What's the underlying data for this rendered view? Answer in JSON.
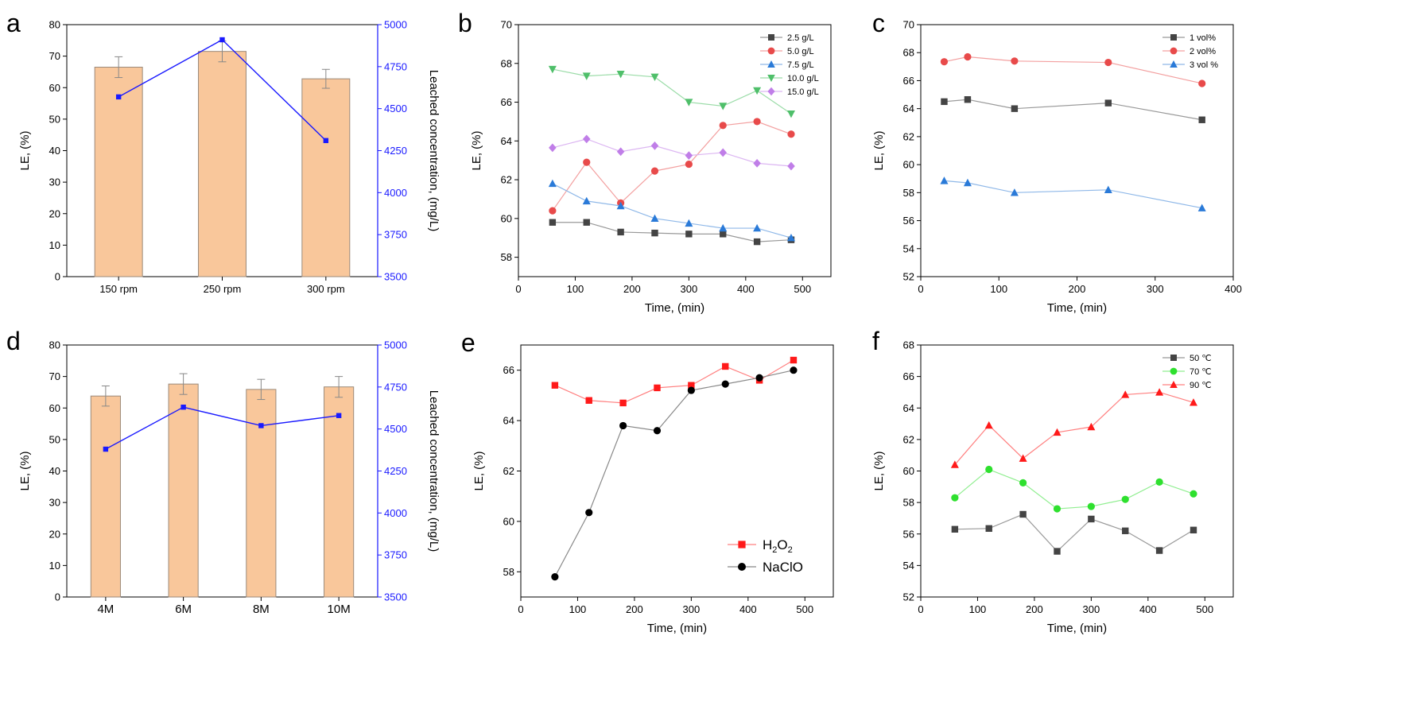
{
  "chart_data": [
    {
      "panel": "a",
      "type": "bar",
      "xlabel": "",
      "ylabel": "LE, (%)",
      "ylim": [
        0,
        80
      ],
      "yticks": [
        0,
        10,
        20,
        30,
        40,
        50,
        60,
        70,
        80
      ],
      "categories": [
        "150 rpm",
        "250 rpm",
        "300 rpm"
      ],
      "values": [
        66.5,
        71.5,
        62.8
      ],
      "errors": [
        3.3,
        3.3,
        3.0
      ],
      "secondary": {
        "ylabel": "Leached concentration, (mg/L)",
        "ylim": [
          3500,
          5000
        ],
        "yticks": [
          3500,
          3750,
          4000,
          4250,
          4500,
          4750,
          5000
        ],
        "values": [
          4570,
          4910,
          4310
        ],
        "color": "#1a1aff"
      },
      "bar_color": "#f9c79b",
      "bar_edge": "#9b8a7a"
    },
    {
      "panel": "b",
      "type": "line",
      "xlabel": "Time, (min)",
      "ylabel": "LE, (%)",
      "xlim": [
        0,
        550
      ],
      "xticks": [
        0,
        100,
        200,
        300,
        400,
        500
      ],
      "ylim": [
        57,
        70
      ],
      "yticks": [
        58,
        60,
        62,
        64,
        66,
        68,
        70
      ],
      "x": [
        60,
        120,
        180,
        240,
        300,
        360,
        420,
        480
      ],
      "legend_position": "top-right",
      "series": [
        {
          "name": "2.5 g/L",
          "marker": "square",
          "color": "#444444",
          "line": "#999999",
          "values": [
            59.8,
            59.8,
            59.3,
            59.25,
            59.2,
            59.2,
            58.8,
            58.9
          ]
        },
        {
          "name": "5.0 g/L",
          "marker": "circle",
          "color": "#e84a4a",
          "line": "#f3a0a0",
          "values": [
            60.4,
            62.9,
            60.8,
            62.45,
            62.8,
            64.8,
            65.0,
            64.35
          ]
        },
        {
          "name": "7.5 g/L",
          "marker": "triangle",
          "color": "#2a7ad8",
          "line": "#8fb8e8",
          "values": [
            61.8,
            60.9,
            60.65,
            60.0,
            59.75,
            59.5,
            59.5,
            59.0
          ]
        },
        {
          "name": "10.0 g/L",
          "marker": "triangle-down",
          "color": "#4fbf6a",
          "line": "#9bdca8",
          "values": [
            67.7,
            67.35,
            67.45,
            67.3,
            66.0,
            65.8,
            66.6,
            65.4
          ]
        },
        {
          "name": "15.0 g/L",
          "marker": "diamond",
          "color": "#c07ee8",
          "line": "#dcb6f2",
          "values": [
            63.65,
            64.1,
            63.45,
            63.75,
            63.25,
            63.4,
            62.85,
            62.7
          ]
        }
      ]
    },
    {
      "panel": "c",
      "type": "line",
      "xlabel": "Time, (min)",
      "ylabel": "LE, (%)",
      "xlim": [
        0,
        400
      ],
      "xticks": [
        0,
        100,
        200,
        300,
        400
      ],
      "ylim": [
        52,
        70
      ],
      "yticks": [
        52,
        54,
        56,
        58,
        60,
        62,
        64,
        66,
        68,
        70
      ],
      "x": [
        30,
        60,
        120,
        240,
        360
      ],
      "legend_position": "top-right",
      "series": [
        {
          "name": "1 vol%",
          "marker": "square",
          "color": "#444444",
          "line": "#999999",
          "values": [
            64.5,
            64.65,
            64.0,
            64.4,
            63.2
          ]
        },
        {
          "name": "2 vol%",
          "marker": "circle",
          "color": "#e84a4a",
          "line": "#f3a0a0",
          "values": [
            67.35,
            67.7,
            67.4,
            67.3,
            65.8
          ]
        },
        {
          "name": "3 vol %",
          "marker": "triangle",
          "color": "#2a7ad8",
          "line": "#8fb8e8",
          "values": [
            58.85,
            58.7,
            58.0,
            58.2,
            56.9
          ]
        }
      ]
    },
    {
      "panel": "d",
      "type": "bar",
      "xlabel": "",
      "ylabel": "LE, (%)",
      "ylim": [
        0,
        80
      ],
      "yticks": [
        0,
        10,
        20,
        30,
        40,
        50,
        60,
        70,
        80
      ],
      "categories": [
        "4M",
        "6M",
        "8M",
        "10M"
      ],
      "values": [
        63.8,
        67.6,
        65.9,
        66.7
      ],
      "errors": [
        3.2,
        3.3,
        3.2,
        3.3
      ],
      "secondary": {
        "ylabel": "Leached concentration, (mg/L)",
        "ylim": [
          3500,
          5000
        ],
        "yticks": [
          3500,
          3750,
          4000,
          4250,
          4500,
          4750,
          5000
        ],
        "values": [
          4380,
          4630,
          4520,
          4580
        ],
        "color": "#1a1aff"
      },
      "bar_color": "#f9c79b",
      "bar_edge": "#9b8a7a"
    },
    {
      "panel": "e",
      "type": "line",
      "xlabel": "Time, (min)",
      "ylabel": "LE, (%)",
      "xlim": [
        0,
        550
      ],
      "xticks": [
        0,
        100,
        200,
        300,
        400,
        500
      ],
      "ylim": [
        57,
        67
      ],
      "yticks": [
        58,
        60,
        62,
        64,
        66
      ],
      "x": [
        60,
        120,
        180,
        240,
        300,
        360,
        420,
        480
      ],
      "legend_position": "bottom-right",
      "series": [
        {
          "name": "H2O2",
          "marker": "square",
          "color": "#ff1a1a",
          "line": "#ff8080",
          "values": [
            65.4,
            64.8,
            64.7,
            65.3,
            65.4,
            66.15,
            65.6,
            66.4
          ]
        },
        {
          "name": "NaClO",
          "marker": "circle",
          "color": "#000000",
          "line": "#888888",
          "values": [
            57.8,
            60.35,
            63.8,
            63.6,
            65.2,
            65.45,
            65.7,
            66.0
          ]
        }
      ]
    },
    {
      "panel": "f",
      "type": "line",
      "xlabel": "Time, (min)",
      "ylabel": "LE, (%)",
      "xlim": [
        0,
        550
      ],
      "xticks": [
        0,
        100,
        200,
        300,
        400,
        500
      ],
      "ylim": [
        52,
        68
      ],
      "yticks": [
        52,
        54,
        56,
        58,
        60,
        62,
        64,
        66,
        68
      ],
      "x": [
        60,
        120,
        180,
        240,
        300,
        360,
        420,
        480
      ],
      "legend_position": "top-right",
      "series": [
        {
          "name": "50 ℃",
          "marker": "square",
          "color": "#444444",
          "line": "#999999",
          "values": [
            56.3,
            56.35,
            57.25,
            54.9,
            56.95,
            56.2,
            54.95,
            56.25
          ]
        },
        {
          "name": "70 ℃",
          "marker": "circle",
          "color": "#2ee02e",
          "line": "#90ee90",
          "values": [
            58.3,
            60.1,
            59.25,
            57.6,
            57.75,
            58.2,
            59.3,
            58.55
          ]
        },
        {
          "name": "90 ℃",
          "marker": "triangle",
          "color": "#ff1a1a",
          "line": "#ff8080",
          "values": [
            60.4,
            62.9,
            60.8,
            62.45,
            62.8,
            64.85,
            65.0,
            64.35
          ]
        }
      ]
    }
  ]
}
